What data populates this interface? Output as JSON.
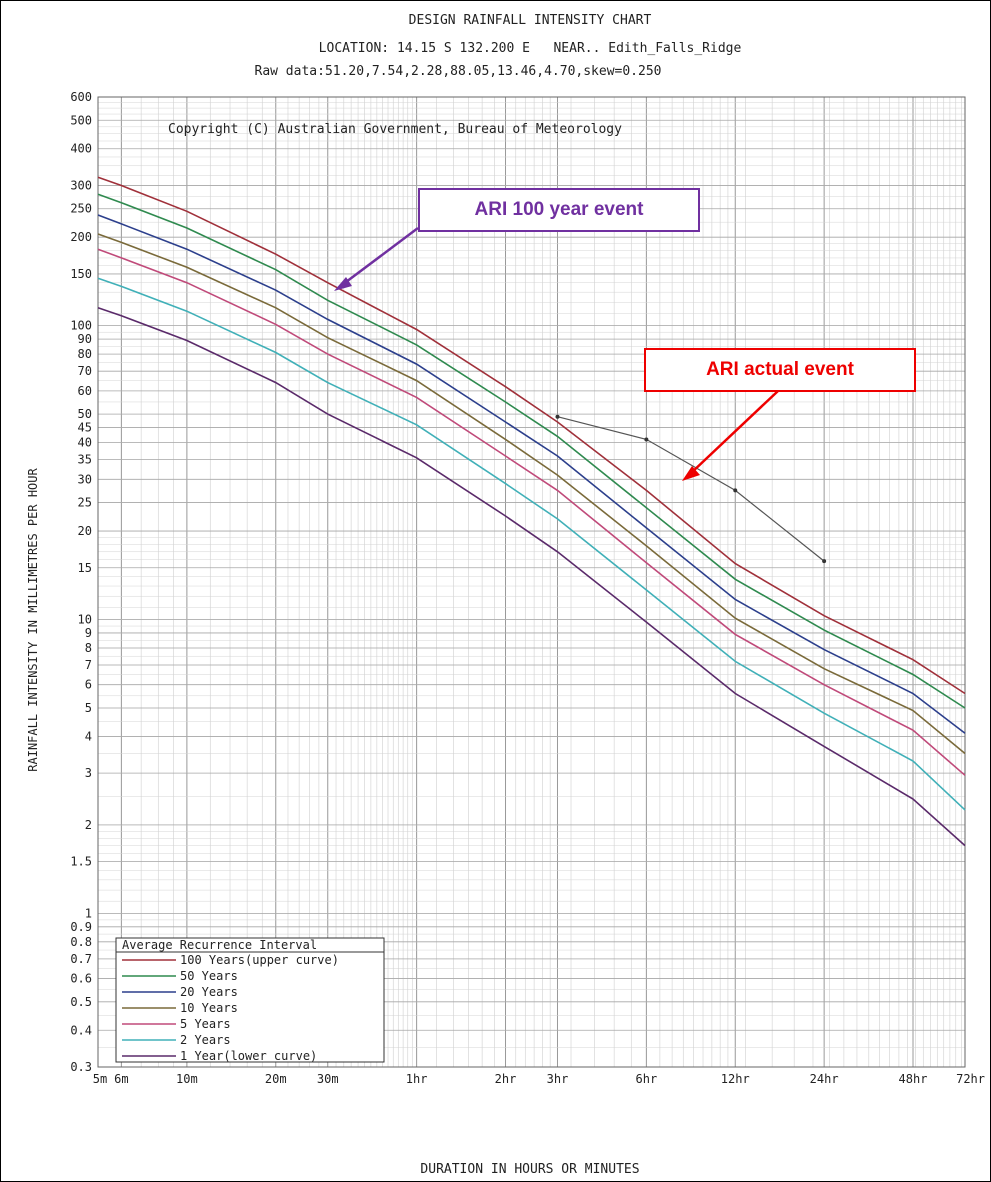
{
  "chart_data": {
    "type": "line",
    "title": "DESIGN RAINFALL INTENSITY CHART",
    "subtitle": "LOCATION: 14.15 S 132.200 E   NEAR.. Edith_Falls_Ridge",
    "raw_data": "Raw data:51.20,7.54,2.28,88.05,13.46,4.70,skew=0.250",
    "copyright": "Copyright (C) Australian Government, Bureau of Meteorology",
    "xlabel": "DURATION IN HOURS OR MINUTES",
    "ylabel": "RAINFALL INTENSITY IN MILLIMETRES PER HOUR",
    "x_scale": "log",
    "y_scale": "log",
    "xlim_minutes": [
      5,
      4320
    ],
    "ylim": [
      0.3,
      600
    ],
    "grid": true,
    "legend_placement": "bottom-left",
    "legend_title": "Average Recurrence Interval",
    "x_ticks": [
      {
        "label": "5m",
        "minutes": 5
      },
      {
        "label": "6m",
        "minutes": 6
      },
      {
        "label": "10m",
        "minutes": 10
      },
      {
        "label": "20m",
        "minutes": 20
      },
      {
        "label": "30m",
        "minutes": 30
      },
      {
        "label": "1hr",
        "minutes": 60
      },
      {
        "label": "2hr",
        "minutes": 120
      },
      {
        "label": "3hr",
        "minutes": 180
      },
      {
        "label": "6hr",
        "minutes": 360
      },
      {
        "label": "12hr",
        "minutes": 720
      },
      {
        "label": "24hr",
        "minutes": 1440
      },
      {
        "label": "48hr",
        "minutes": 2880
      },
      {
        "label": "72hr",
        "minutes": 4320
      }
    ],
    "y_ticks": [
      {
        "label": "600",
        "value": 600
      },
      {
        "label": "500",
        "value": 500
      },
      {
        "label": "400",
        "value": 400
      },
      {
        "label": "300",
        "value": 300
      },
      {
        "label": "250",
        "value": 250
      },
      {
        "label": "200",
        "value": 200
      },
      {
        "label": "150",
        "value": 150
      },
      {
        "label": "100",
        "value": 100
      },
      {
        "label": "90",
        "value": 90
      },
      {
        "label": "80",
        "value": 80
      },
      {
        "label": "70",
        "value": 70
      },
      {
        "label": "60",
        "value": 60
      },
      {
        "label": "50",
        "value": 50
      },
      {
        "label": "45",
        "value": 45
      },
      {
        "label": "40",
        "value": 40
      },
      {
        "label": "35",
        "value": 35
      },
      {
        "label": "30",
        "value": 30
      },
      {
        "label": "25",
        "value": 25
      },
      {
        "label": "20",
        "value": 20
      },
      {
        "label": "15",
        "value": 15
      },
      {
        "label": "10",
        "value": 10
      },
      {
        "label": "9",
        "value": 9
      },
      {
        "label": "8",
        "value": 8
      },
      {
        "label": "7",
        "value": 7
      },
      {
        "label": "6",
        "value": 6
      },
      {
        "label": "5",
        "value": 5
      },
      {
        "label": "4",
        "value": 4
      },
      {
        "label": "3",
        "value": 3
      },
      {
        "label": "2",
        "value": 2
      },
      {
        "label": "1.5",
        "value": 1.5
      },
      {
        "label": "1",
        "value": 1
      },
      {
        "label": "0.9",
        "value": 0.9
      },
      {
        "label": "0.8",
        "value": 0.8
      },
      {
        "label": "0.7",
        "value": 0.7
      },
      {
        "label": "0.6",
        "value": 0.6
      },
      {
        "label": "0.5",
        "value": 0.5
      },
      {
        "label": "0.4",
        "value": 0.4
      },
      {
        "label": "0.3",
        "value": 0.3
      }
    ],
    "series_x_minutes": [
      5,
      6,
      10,
      20,
      30,
      60,
      120,
      180,
      360,
      720,
      1440,
      2880,
      4320
    ],
    "series": [
      {
        "name": "100 Years(upper curve)",
        "color": "#a0303a",
        "values": [
          320,
          300,
          245,
          175,
          140,
          97,
          62,
          47,
          27.5,
          15.5,
          10.3,
          7.3,
          5.6
        ]
      },
      {
        "name": "50 Years",
        "color": "#2f8a4f",
        "values": [
          280,
          262,
          215,
          155,
          122,
          86,
          55,
          42,
          24,
          13.7,
          9.2,
          6.5,
          5.0
        ]
      },
      {
        "name": "20 Years",
        "color": "#2c3f8c",
        "values": [
          238,
          222,
          182,
          132,
          105,
          74,
          47,
          36,
          20.5,
          11.7,
          7.9,
          5.6,
          4.1
        ]
      },
      {
        "name": "10 Years",
        "color": "#7a6a3a",
        "values": [
          205,
          192,
          158,
          115,
          91,
          65,
          41,
          31,
          17.8,
          10.1,
          6.8,
          4.9,
          3.5
        ]
      },
      {
        "name": "5 Years",
        "color": "#c04a7a",
        "values": [
          182,
          170,
          140,
          101,
          80,
          57,
          36,
          27.5,
          15.6,
          8.9,
          6.0,
          4.2,
          2.95
        ]
      },
      {
        "name": "2 Years",
        "color": "#40b0b8",
        "values": [
          145,
          136,
          112,
          81,
          64,
          46,
          29,
          22,
          12.6,
          7.2,
          4.8,
          3.3,
          2.25
        ]
      },
      {
        "name": "1 Year(lower curve)",
        "color": "#5a2a6a",
        "values": [
          115,
          108,
          89,
          64,
          50,
          35.5,
          22.5,
          17,
          9.8,
          5.6,
          3.7,
          2.45,
          1.7
        ]
      }
    ],
    "actual_event": {
      "x_minutes": [
        180,
        360,
        720,
        1440
      ],
      "values": [
        49,
        41,
        27.5,
        15.8
      ],
      "color": "#555555"
    },
    "annotations": [
      {
        "text": "ARI 100 year event",
        "color": "#7030a0"
      },
      {
        "text": "ARI actual event",
        "color": "#ee0000"
      }
    ]
  }
}
